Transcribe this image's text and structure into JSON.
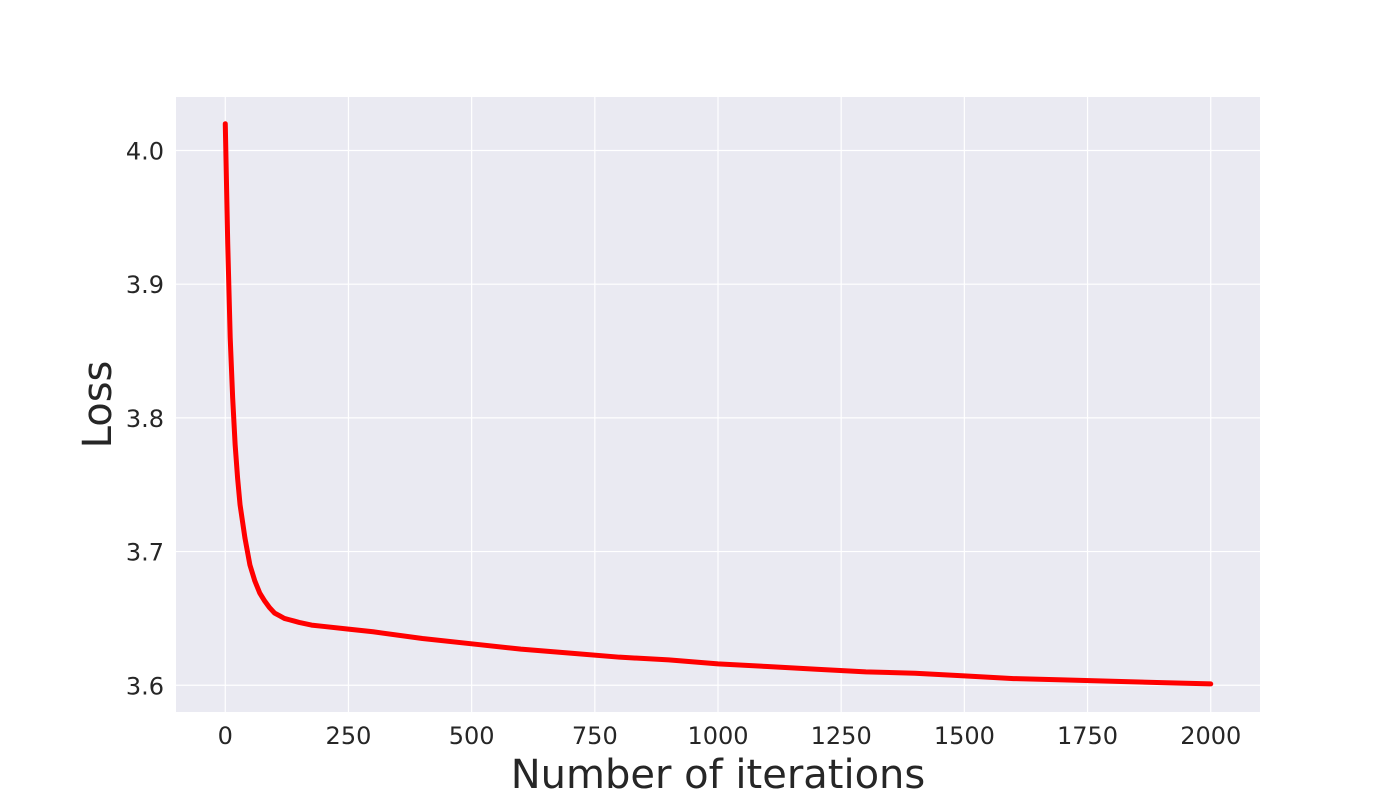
{
  "chart_data": {
    "type": "line",
    "title": "",
    "xlabel": "Number of iterations",
    "ylabel": "Loss",
    "xlim": [
      -100,
      2100
    ],
    "ylim": [
      3.58,
      4.04
    ],
    "xticks": [
      0,
      250,
      500,
      750,
      1000,
      1250,
      1500,
      1750,
      2000
    ],
    "xtick_labels": [
      "0",
      "250",
      "500",
      "750",
      "1000",
      "1250",
      "1500",
      "1750",
      "2000"
    ],
    "yticks": [
      3.6,
      3.7,
      3.8,
      3.9,
      4.0
    ],
    "ytick_labels": [
      "3.6",
      "3.7",
      "3.8",
      "3.9",
      "4.0"
    ],
    "grid": true,
    "background_color": "#eaeaf2",
    "grid_color": "#ffffff",
    "series": [
      {
        "color": "#ff0000",
        "x": [
          0,
          5,
          10,
          15,
          20,
          25,
          30,
          40,
          50,
          60,
          70,
          80,
          90,
          100,
          110,
          120,
          130,
          140,
          150,
          175,
          200,
          250,
          300,
          400,
          500,
          600,
          700,
          800,
          900,
          1000,
          1100,
          1200,
          1300,
          1400,
          1500,
          1600,
          1700,
          1800,
          1900,
          2000
        ],
        "y": [
          4.02,
          3.93,
          3.86,
          3.815,
          3.78,
          3.755,
          3.735,
          3.71,
          3.69,
          3.678,
          3.669,
          3.663,
          3.658,
          3.654,
          3.652,
          3.65,
          3.649,
          3.648,
          3.647,
          3.645,
          3.644,
          3.642,
          3.64,
          3.635,
          3.631,
          3.627,
          3.624,
          3.621,
          3.619,
          3.616,
          3.614,
          3.612,
          3.61,
          3.609,
          3.607,
          3.605,
          3.604,
          3.603,
          3.602,
          3.601
        ]
      }
    ]
  }
}
